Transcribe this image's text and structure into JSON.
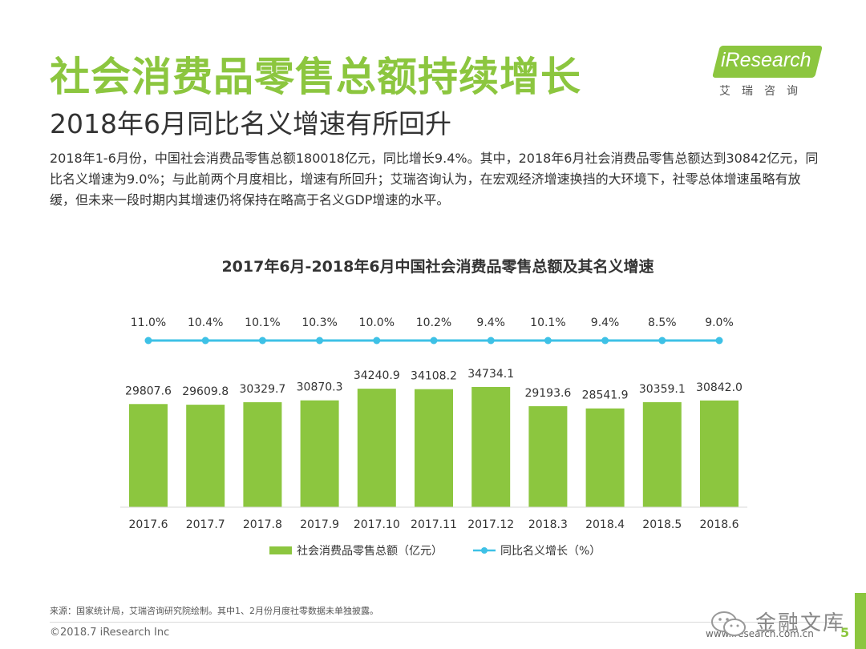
{
  "slide": {
    "title": "社会消费品零售总额持续增长",
    "subtitle": "2018年6月同比名义增速有所回升",
    "body": "2018年1-6月份，中国社会消费品零售总额180018亿元，同比增长9.4%。其中，2018年6月社会消费品零售总额达到30842亿元，同比名义增速为9.0%；与此前两个月度相比，增速有所回升；艾瑞咨询认为，在宏观经济增速换挡的大环境下，社零总体增速虽略有放缓，但未来一段时期内其增速仍将保持在略高于名义GDP增速的水平。",
    "source": "来源：国家统计局，艾瑞咨询研究院绘制。其中1、2月份月度社零数据未单独披露。",
    "copyright": "©2018.7 iResearch Inc",
    "website": "www.iresearch.com.cn",
    "page_number": "5"
  },
  "logo": {
    "text": "iResearch",
    "subtext": "艾瑞咨询"
  },
  "watermark": {
    "text": "金融文库",
    "icon": "wechat-icon"
  },
  "colors": {
    "bar": "#8cc63f",
    "line": "#3ec1e6",
    "title": "#8cc63f"
  },
  "chart_data": {
    "type": "bar",
    "title": "2017年6月-2018年6月中国社会消费品零售总额及其名义增速",
    "categories": [
      "2017.6",
      "2017.7",
      "2017.8",
      "2017.9",
      "2017.10",
      "2017.11",
      "2017.12",
      "2018.3",
      "2018.4",
      "2018.5",
      "2018.6"
    ],
    "series": [
      {
        "name": "社会消费品零售总额（亿元）",
        "type": "bar",
        "values": [
          29807.6,
          29609.8,
          30329.7,
          30870.3,
          34240.9,
          34108.2,
          34734.1,
          29193.6,
          28541.9,
          30359.1,
          30842.0
        ],
        "labels": [
          "29807.6",
          "29609.8",
          "30329.7",
          "30870.3",
          "34240.9",
          "34108.2",
          "34734.1",
          "29193.6",
          "28541.9",
          "30359.1",
          "30842.0"
        ]
      },
      {
        "name": "同比名义增长（%）",
        "type": "line",
        "values": [
          11.0,
          10.4,
          10.1,
          10.3,
          10.0,
          10.2,
          9.4,
          10.1,
          9.4,
          8.5,
          9.0
        ],
        "labels": [
          "11.0%",
          "10.4%",
          "10.1%",
          "10.3%",
          "10.0%",
          "10.2%",
          "9.4%",
          "10.1%",
          "9.4%",
          "8.5%",
          "9.0%"
        ]
      }
    ],
    "legend_position": "bottom",
    "grid": false
  }
}
